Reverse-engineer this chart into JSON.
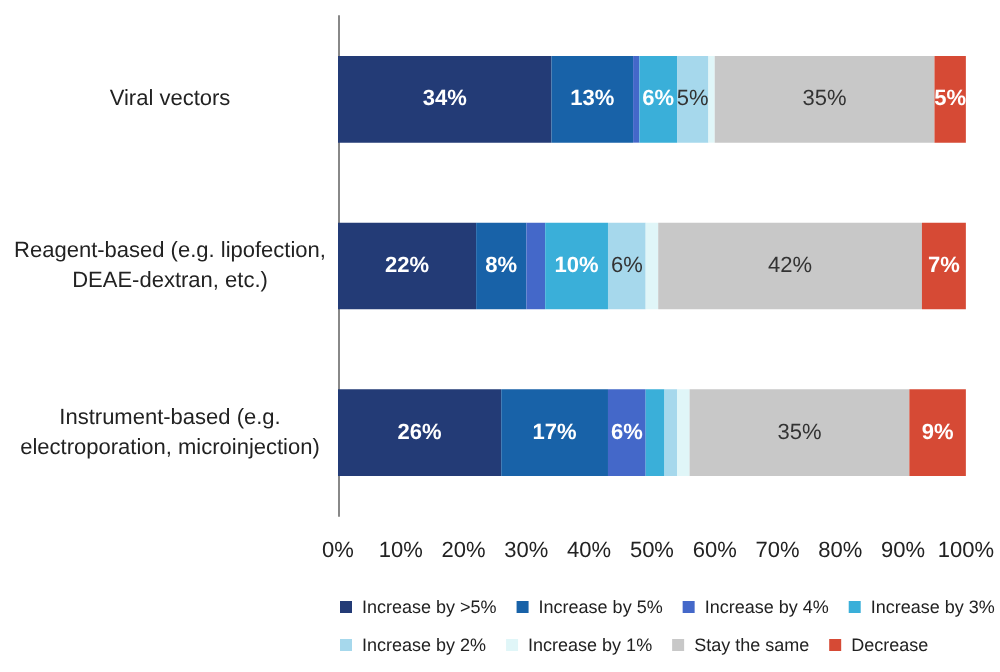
{
  "chart_data": {
    "type": "bar",
    "orientation": "horizontal",
    "stacked": true,
    "categories": [
      "Viral vectors",
      "Reagent-based (e.g. lipofection,\nDEAE-dextran, etc.)",
      "Instrument-based (e.g.\nelectroporation, microinjection)"
    ],
    "xlim": [
      0,
      100
    ],
    "xticks": [
      {
        "value": 0,
        "label": "0%"
      },
      {
        "value": 10,
        "label": "10%"
      },
      {
        "value": 20,
        "label": "20%"
      },
      {
        "value": 30,
        "label": "30%"
      },
      {
        "value": 40,
        "label": "40%"
      },
      {
        "value": 50,
        "label": "50%"
      },
      {
        "value": 60,
        "label": "60%"
      },
      {
        "value": 70,
        "label": "70%"
      },
      {
        "value": 80,
        "label": "80%"
      },
      {
        "value": 90,
        "label": "90%"
      },
      {
        "value": 100,
        "label": "100%"
      }
    ],
    "grid": false,
    "legend": "bottom",
    "series": [
      {
        "name": "Increase by >5%",
        "color": "#233b76",
        "values": [
          34,
          22,
          26
        ],
        "value_labels": [
          "34%",
          "22%",
          "26%"
        ]
      },
      {
        "name": "Increase by 5%",
        "color": "#1862a8",
        "values": [
          13,
          8,
          17
        ],
        "value_labels": [
          "13%",
          "8%",
          "17%"
        ]
      },
      {
        "name": "Increase by 4%",
        "color": "#4468c9",
        "values": [
          1,
          3,
          6
        ],
        "value_labels": [
          null,
          null,
          "6%"
        ]
      },
      {
        "name": "Increase by 3%",
        "color": "#3aafd9",
        "values": [
          6,
          10,
          3
        ],
        "value_labels": [
          "6%",
          "10%",
          null
        ]
      },
      {
        "name": "Increase by 2%",
        "color": "#a6d8ec",
        "values": [
          5,
          6,
          2
        ],
        "value_labels": [
          "5%",
          "6%",
          null
        ]
      },
      {
        "name": "Increase by 1%",
        "color": "#e0f6f8",
        "values": [
          1,
          2,
          2
        ]
      },
      {
        "name": "Stay the same",
        "color": "#c8c8c8",
        "values": [
          35,
          42,
          35
        ],
        "value_labels": [
          "35%",
          "42%",
          "35%"
        ]
      },
      {
        "name": "Decrease",
        "color": "#d64a35",
        "values": [
          5,
          7,
          9
        ],
        "value_labels": [
          "5%",
          "7%",
          "9%"
        ]
      }
    ]
  }
}
